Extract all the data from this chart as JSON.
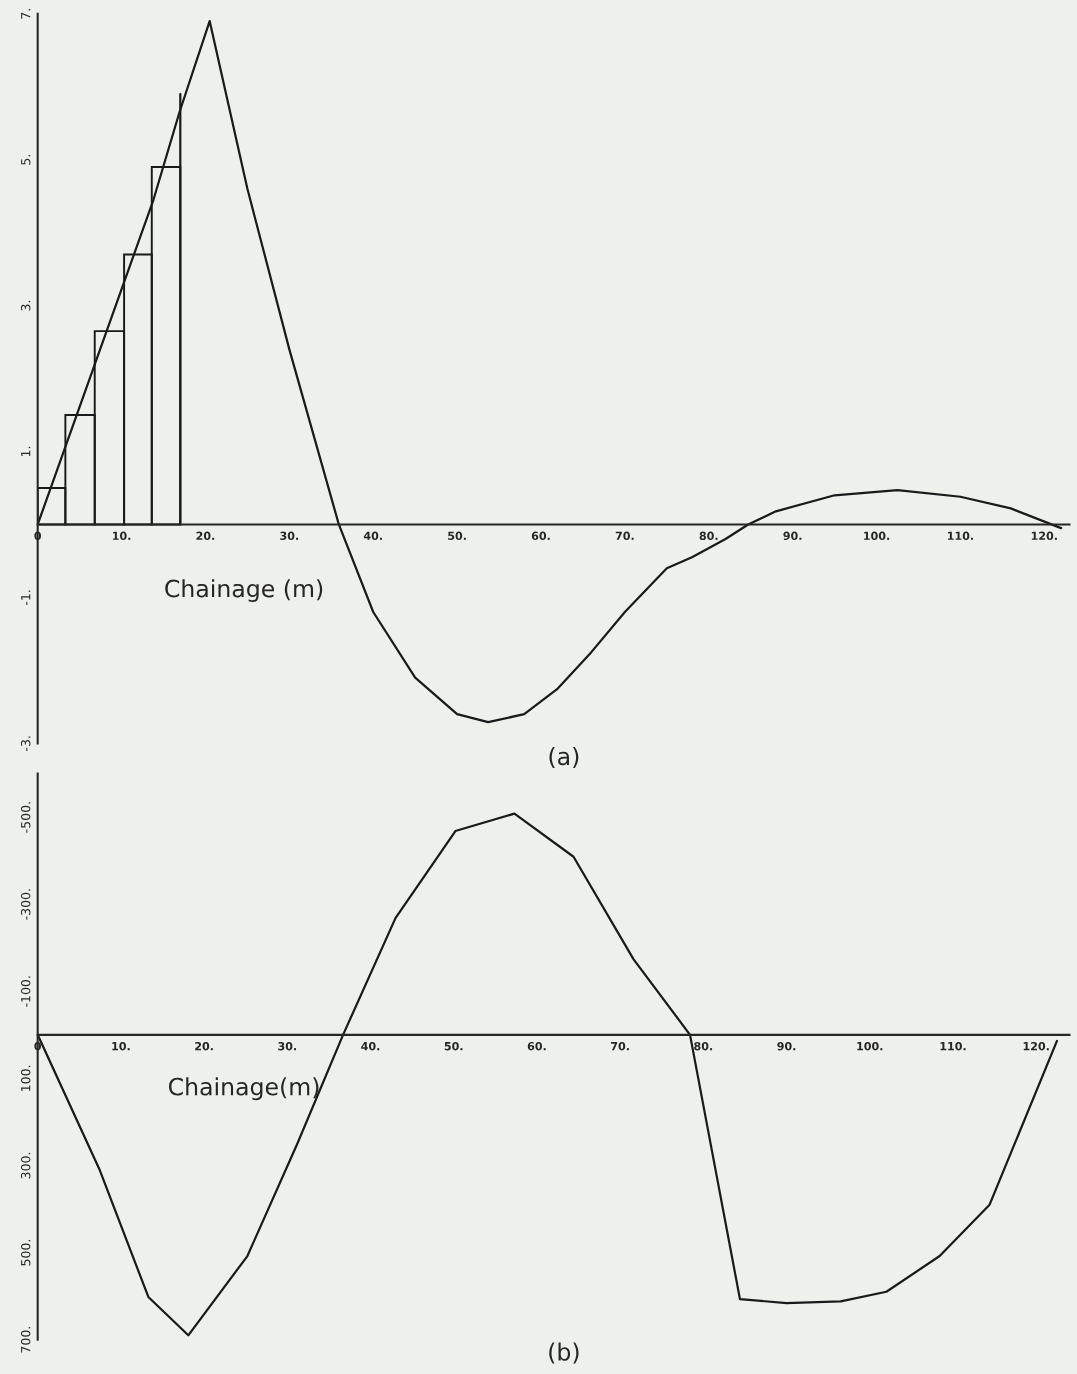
{
  "chart_data": [
    {
      "type": "line",
      "title": "(a)",
      "xlabel": "Chainage (m)",
      "xlim": [
        0,
        123
      ],
      "ylim": [
        -3,
        7
      ],
      "xticks": [
        {
          "value": 0,
          "label": "0"
        },
        {
          "value": 10,
          "label": "10."
        },
        {
          "value": 20,
          "label": "20."
        },
        {
          "value": 30,
          "label": "30."
        },
        {
          "value": 40,
          "label": "40."
        },
        {
          "value": 50,
          "label": "50."
        },
        {
          "value": 60,
          "label": "60."
        },
        {
          "value": 70,
          "label": "70."
        },
        {
          "value": 80,
          "label": "80."
        },
        {
          "value": 90,
          "label": "90."
        },
        {
          "value": 100,
          "label": "100."
        },
        {
          "value": 110,
          "label": "110."
        },
        {
          "value": 120,
          "label": "120."
        }
      ],
      "yticks": [
        {
          "value": -3,
          "label": "-3."
        },
        {
          "value": -1,
          "label": "-1."
        },
        {
          "value": 1,
          "label": "1."
        },
        {
          "value": 3,
          "label": "3."
        },
        {
          "value": 5,
          "label": "5."
        },
        {
          "value": 7,
          "label": "7."
        }
      ],
      "grid": false,
      "series": [
        {
          "color": "#1a1a1a",
          "x": [
            0,
            13.8,
            16.9,
            20.5,
            25,
            30,
            35.9,
            40,
            45,
            50,
            53.7,
            58,
            62,
            66,
            70,
            75,
            78,
            82,
            84.7,
            88,
            95,
            102.5,
            110,
            116,
            122
          ],
          "values": [
            0,
            4.45,
            5.65,
            6.9,
            4.6,
            2.4,
            0,
            -1.2,
            -2.1,
            -2.6,
            -2.71,
            -2.6,
            -2.25,
            -1.75,
            -1.2,
            -0.6,
            -0.45,
            -0.2,
            0,
            0.18,
            0.4,
            0.47,
            0.38,
            0.22,
            -0.05
          ]
        },
        {
          "type": "histogram",
          "color": "#1a1a1a",
          "bins": [
            0,
            3.3,
            6.8,
            10.3,
            13.6,
            17.0
          ],
          "values": [
            0.5,
            1.5,
            2.65,
            3.7,
            4.9
          ]
        },
        {
          "color": "#1a1a1a",
          "x": [
            17.0,
            17.0
          ],
          "values": [
            0,
            5.9
          ]
        }
      ]
    },
    {
      "type": "line",
      "title": "(b)",
      "xlabel": "Chainage(m)",
      "xlim": [
        0,
        124
      ],
      "ylim": [
        700,
        -600
      ],
      "xticks": [
        {
          "value": 0,
          "label": "0"
        },
        {
          "value": 10,
          "label": "10."
        },
        {
          "value": 20,
          "label": "20."
        },
        {
          "value": 30,
          "label": "30."
        },
        {
          "value": 40,
          "label": "40."
        },
        {
          "value": 50,
          "label": "50."
        },
        {
          "value": 60,
          "label": "60."
        },
        {
          "value": 70,
          "label": "70."
        },
        {
          "value": 80,
          "label": "80."
        },
        {
          "value": 90,
          "label": "90."
        },
        {
          "value": 100,
          "label": "100."
        },
        {
          "value": 110,
          "label": "110."
        },
        {
          "value": 120,
          "label": "120."
        }
      ],
      "yticks": [
        {
          "value": -500,
          "label": "-500."
        },
        {
          "value": -300,
          "label": "-300."
        },
        {
          "value": -100,
          "label": "-100."
        },
        {
          "value": 100,
          "label": "100."
        },
        {
          "value": 300,
          "label": "300."
        },
        {
          "value": 500,
          "label": "500."
        },
        {
          "value": 700,
          "label": "700."
        }
      ],
      "grid": false,
      "series": [
        {
          "color": "#1a1a1a",
          "x": [
            0,
            7.4,
            13.3,
            18.1,
            25.2,
            31.2,
            36.7,
            43,
            50.2,
            57.3,
            64.4,
            71.6,
            78.4,
            84.4,
            90,
            96.5,
            102,
            108.4,
            114.4,
            122.5
          ],
          "values": [
            0,
            308,
            602,
            690,
            508,
            250,
            0,
            -268,
            -468,
            -508,
            -409,
            -174,
            0,
            607,
            616,
            612,
            590,
            508,
            390,
            14
          ]
        }
      ]
    }
  ]
}
